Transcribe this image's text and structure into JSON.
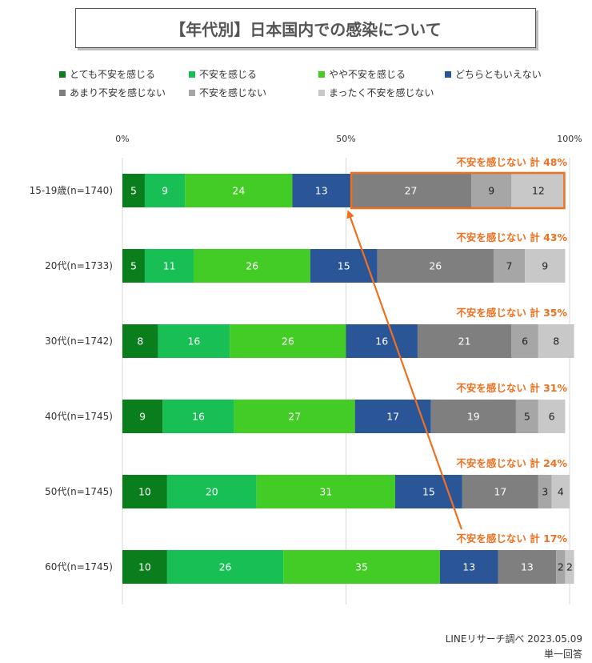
{
  "title": "【年代別】日本国内での感染について",
  "source": "LINEリサーチ調べ 2023.05.09",
  "note": "単一回答",
  "chart_data": {
    "type": "bar",
    "orientation": "horizontal",
    "stacked": true,
    "categories": [
      "15-19歳(n=1740)",
      "20代(n=1733)",
      "30代(n=1742)",
      "40代(n=1745)",
      "50代(n=1745)",
      "60代(n=1745)"
    ],
    "xticks": [
      "0%",
      "50%",
      "100%"
    ],
    "xlim": [
      0,
      100
    ],
    "legend_position": "top",
    "series": [
      {
        "name": "とても不安を感じる",
        "color": "#0a7d1c",
        "values": [
          5,
          5,
          8,
          9,
          10,
          10
        ]
      },
      {
        "name": "不安を感じる",
        "color": "#17bf55",
        "values": [
          9,
          11,
          16,
          16,
          20,
          26
        ]
      },
      {
        "name": "やや不安を感じる",
        "color": "#44cc26",
        "values": [
          24,
          26,
          26,
          27,
          31,
          35
        ]
      },
      {
        "name": "どちらともいえない",
        "color": "#2a5596",
        "values": [
          13,
          15,
          16,
          17,
          15,
          13
        ]
      },
      {
        "name": "あまり不安を感じない",
        "color": "#7f7f7f",
        "values": [
          27,
          26,
          21,
          19,
          17,
          13
        ]
      },
      {
        "name": "不安を感じない",
        "color": "#a6a6a6",
        "values": [
          9,
          7,
          6,
          5,
          3,
          2
        ]
      },
      {
        "name": "まったく不安を感じない",
        "color": "#c8c8c8",
        "values": [
          12,
          9,
          8,
          6,
          4,
          2
        ]
      }
    ],
    "annotations": [
      "不安を感じない 計 48%",
      "不安を感じない 計 43%",
      "不安を感じない 計 35%",
      "不安を感じない 計 31%",
      "不安を感じない 計 24%",
      "不安を感じない 計 17%"
    ],
    "highlight_color": "#f07020"
  }
}
